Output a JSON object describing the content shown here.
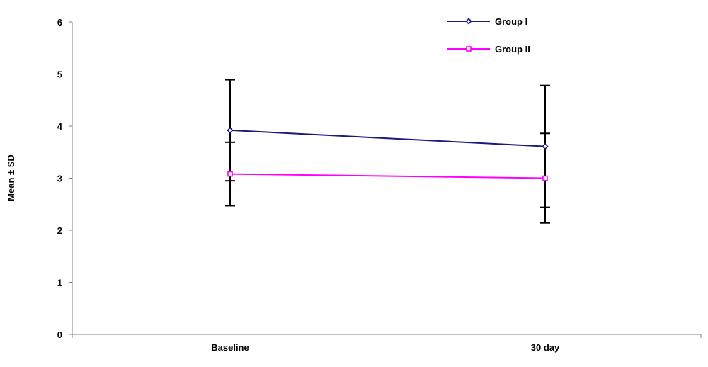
{
  "chart_data": {
    "type": "line",
    "title": "",
    "xlabel": "",
    "ylabel": "Mean ± SD",
    "categories": [
      "Baseline",
      "30 day"
    ],
    "ylim": [
      0,
      6
    ],
    "yticks": [
      0,
      1,
      2,
      3,
      4,
      5,
      6
    ],
    "grid": false,
    "legend_position": "top-right",
    "series": [
      {
        "name": "Group I",
        "values": [
          3.92,
          3.61
        ],
        "sd": [
          0.97,
          1.17
        ],
        "color": "#1a1a7a",
        "marker": "diamond"
      },
      {
        "name": "Group II",
        "values": [
          3.08,
          3.0
        ],
        "sd": [
          0.61,
          0.86
        ],
        "color": "#ff00ff",
        "marker": "square"
      }
    ]
  }
}
